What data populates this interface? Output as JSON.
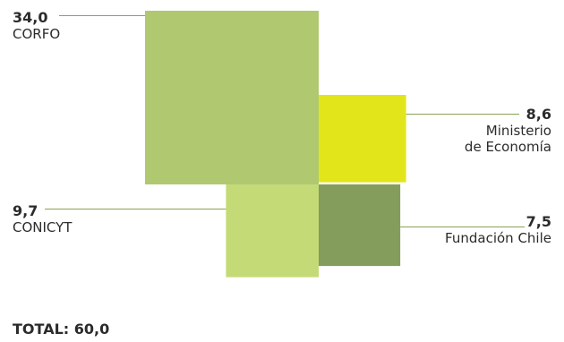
{
  "chart_data": {
    "type": "treemap",
    "decimal_separator": ",",
    "unit": "",
    "items": [
      {
        "label": "CORFO",
        "value": 34.0,
        "value_text": "34,0",
        "color": "#b0c870"
      },
      {
        "label": "Ministerio de Economía",
        "label_lines": [
          "Ministerio",
          "de Economía"
        ],
        "value": 8.6,
        "value_text": "8,6",
        "color": "#e2e51a"
      },
      {
        "label": "CONICYT",
        "value": 9.7,
        "value_text": "9,7",
        "color": "#c3da76"
      },
      {
        "label": "Fundación Chile",
        "value": 7.5,
        "value_text": "7,5",
        "color": "#849c5c"
      }
    ],
    "leader_color": "#8aa357",
    "total_label": "TOTAL: 60,0",
    "total_value": 60.0
  }
}
